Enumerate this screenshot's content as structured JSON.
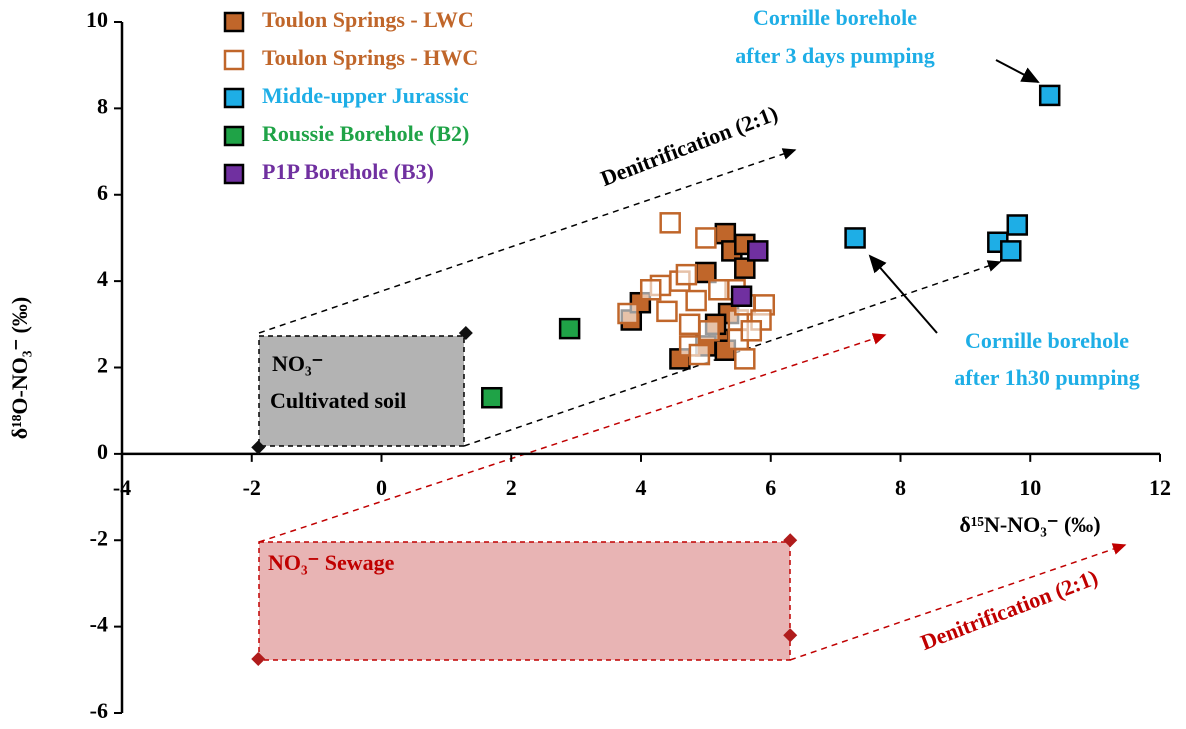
{
  "chart_data": {
    "type": "scatter",
    "x_label": "δ¹⁵N-NO₃⁻ (‰)",
    "y_label": "δ¹⁸O-NO₃⁻ (‰)",
    "xlim": [
      -4,
      12
    ],
    "xticks": [
      -4,
      -2,
      0,
      2,
      4,
      6,
      8,
      10,
      12
    ],
    "ylim": [
      -6,
      10
    ],
    "yticks": [
      -6,
      -4,
      -2,
      0,
      2,
      4,
      6,
      8,
      10
    ],
    "series": [
      {
        "name": "Toulon Springs - LWC",
        "color": "#c0662a",
        "marker": "filled",
        "x": [
          3.85,
          3.99,
          4.6,
          5.0,
          5.3,
          5.4,
          5.6,
          5.6,
          5.35,
          5.2,
          5.3,
          5.0,
          5.15
        ],
        "y": [
          3.1,
          3.5,
          2.2,
          4.2,
          5.1,
          4.7,
          4.85,
          4.3,
          3.25,
          2.65,
          2.4,
          2.5,
          3.0
        ]
      },
      {
        "name": "Toulon Springs - HWC",
        "color": "#c0662a",
        "marker": "hollow",
        "x": [
          4.45,
          4.3,
          4.4,
          3.8,
          4.15,
          4.6,
          4.7,
          5.0,
          4.75,
          4.75,
          4.9,
          5.45,
          5.5,
          5.6,
          5.9,
          5.85,
          5.6,
          5.2,
          5.05,
          4.85,
          5.5,
          5.7
        ],
        "y": [
          5.35,
          3.9,
          3.3,
          3.25,
          3.8,
          4.0,
          4.15,
          5.0,
          3.0,
          2.5,
          2.3,
          3.8,
          3.1,
          3.45,
          3.45,
          3.1,
          2.2,
          3.8,
          2.85,
          3.55,
          2.65,
          2.85
        ]
      },
      {
        "name": "Midde-upper Jurassic",
        "color": "#1eaee6",
        "marker": "filled",
        "x": [
          10.3,
          7.3,
          9.5,
          9.8,
          9.7
        ],
        "y": [
          8.3,
          5.0,
          4.9,
          5.3,
          4.7
        ]
      },
      {
        "name": "Roussie Borehole (B2)",
        "color": "#1fa347",
        "marker": "filled",
        "x": [
          2.9,
          1.7
        ],
        "y": [
          2.9,
          1.3
        ]
      },
      {
        "name": "P1P Borehole (B3)",
        "color": "#7030a0",
        "marker": "filled",
        "x": [
          5.8,
          5.55
        ],
        "y": [
          4.7,
          3.65
        ]
      },
      {
        "color": "#111111",
        "marker": "diamond",
        "x": [
          -1.9,
          1.3
        ],
        "y": [
          0.15,
          2.8
        ]
      },
      {
        "color": "#b01c1c",
        "marker": "diamond",
        "x": [
          -1.9,
          6.3,
          6.3
        ],
        "y": [
          -4.75,
          -2,
          -4.2
        ]
      }
    ],
    "annotations": {
      "soil_top": "NO₃⁻",
      "soil_bottom": "Cultivated soil",
      "sewage": "NO₃⁻ Sewage",
      "denit_black": "Denitrification (2:1)",
      "denit_red": "Denitrification (2:1)",
      "cornille_3d_1": "Cornille borehole",
      "cornille_3d_2": "after 3 days pumping",
      "cornille_1h_1": "Cornille borehole",
      "cornille_1h_2": "after 1h30 pumping"
    }
  }
}
